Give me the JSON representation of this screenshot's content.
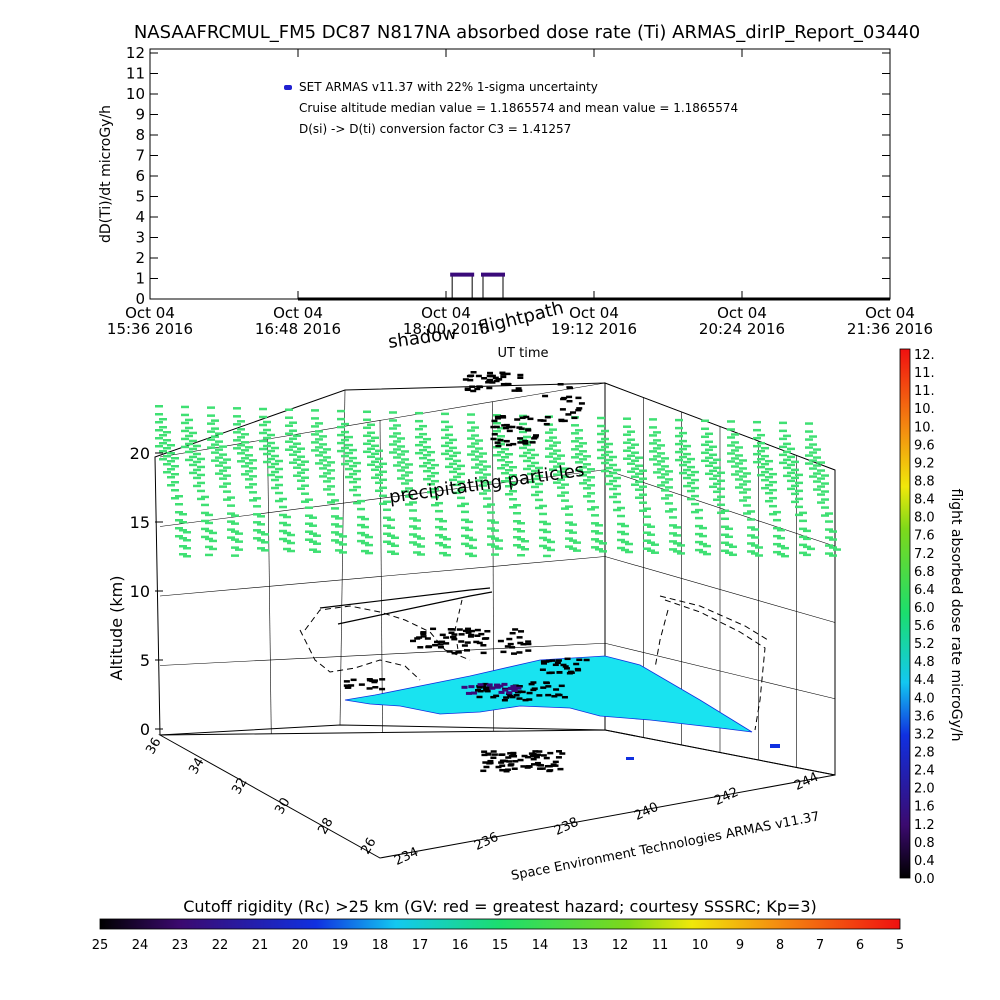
{
  "chart_data": [
    {
      "type": "line",
      "title": "NASAAFRCMUL_FM5 DC87 N817NA absorbed dose rate (Ti) ARMAS_dirIP_Report_03440",
      "ylabel": "dD(Ti)/dt microGy/h",
      "xlabel": "UT time",
      "ylim": [
        0,
        12
      ],
      "yticks": [
        "0",
        "1",
        "2",
        "3",
        "4",
        "5",
        "6",
        "7",
        "8",
        "9",
        "10",
        "11",
        "12"
      ],
      "xticks": [
        {
          "date": "Oct 04",
          "time": "15:36 2016"
        },
        {
          "date": "Oct 04",
          "time": "16:48 2016"
        },
        {
          "date": "Oct 04",
          "time": "18:00 2016"
        },
        {
          "date": "Oct 04",
          "time": "19:12 2016"
        },
        {
          "date": "Oct 04",
          "time": "20:24 2016"
        },
        {
          "date": "Oct 04",
          "time": "21:36 2016"
        }
      ],
      "legend": [
        "SET ARMAS v11.37 with 22% 1-sigma uncertainty",
        "Cruise altitude median value = 1.1865574 and mean value = 1.1865574",
        "D(si) -> D(ti) conversion factor C3 = 1.41257"
      ],
      "legend_color": "#2020d0",
      "series": [
        {
          "x": [
            "16:48",
            "17:48",
            "18:03",
            "18:12",
            "18:18",
            "18:30",
            "20:00",
            "21:36"
          ],
          "values": [
            0,
            0,
            0,
            1.19,
            0,
            1.19,
            0,
            0
          ]
        }
      ]
    },
    {
      "type": "scatter",
      "zlabel": "Altitude (km)",
      "zticks": [
        "0",
        "5",
        "10",
        "15",
        "20"
      ],
      "lat_ticks": [
        "36",
        "34",
        "32",
        "30",
        "28",
        "26"
      ],
      "lon_ticks": [
        "234",
        "236",
        "238",
        "240",
        "242",
        "244"
      ],
      "credit": "Space Environment Technologies ARMAS v11.37",
      "annotations": [
        "shadow",
        "flightpath",
        "precipitating particles"
      ],
      "colorbar_right": {
        "label": "flight absorbed dose rate microGy/h",
        "ticks": [
          "12.",
          "11.",
          "11.",
          "10.",
          "10.",
          "9.6",
          "9.2",
          "8.8",
          "8.4",
          "8.0",
          "7.6",
          "7.2",
          "6.8",
          "6.4",
          "6.0",
          "5.6",
          "5.2",
          "4.8",
          "4.4",
          "4.0",
          "3.6",
          "3.2",
          "2.8",
          "2.4",
          "2.0",
          "1.6",
          "1.2",
          "0.8",
          "0.4",
          "0.0"
        ]
      },
      "colorbar_bottom": {
        "label": "Cutoff rigidity (Rc) >25 km (GV: red = greatest hazard; courtesy SSSRC; Kp=3)",
        "ticks": [
          "25",
          "24",
          "23",
          "22",
          "21",
          "20",
          "19",
          "18",
          "17",
          "16",
          "15",
          "14",
          "13",
          "12",
          "11",
          "10",
          "9",
          "8",
          "7",
          "6",
          "5"
        ]
      },
      "colors": {
        "shadow_fill": "#19e3f0",
        "particles": "#3fe073",
        "flight_points": "#000000",
        "dose_points": "#3a0a7a"
      }
    }
  ]
}
